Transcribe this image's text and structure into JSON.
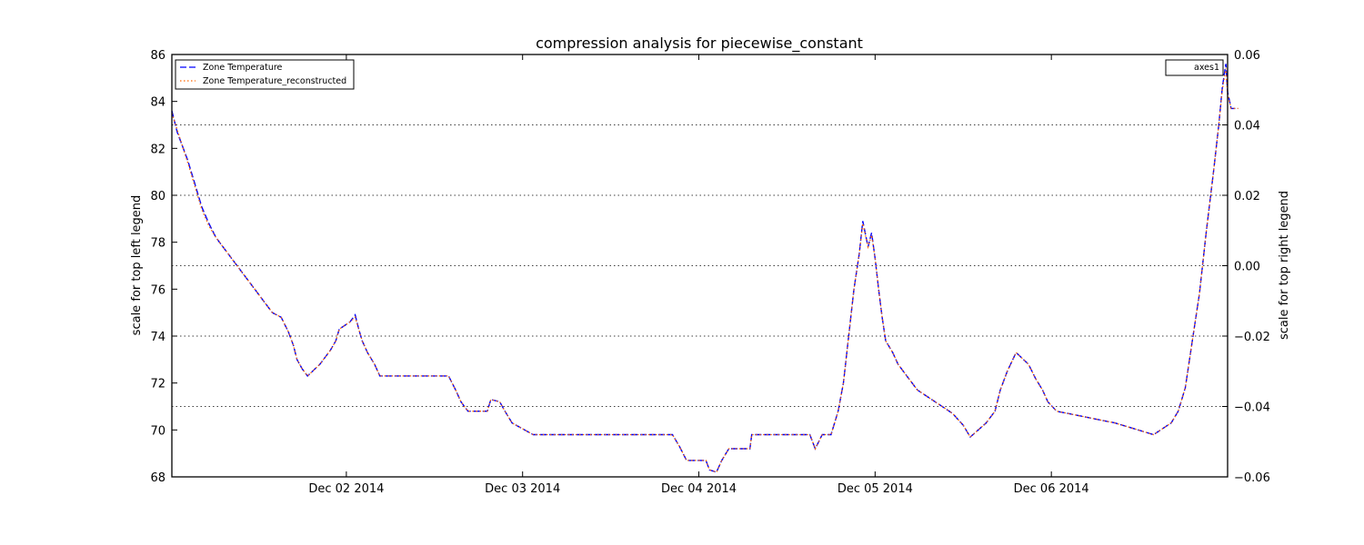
{
  "chart_data": {
    "type": "line",
    "title": "compression analysis for piecewise_constant",
    "ylabel_left": "scale for top left legend",
    "ylabel_right": "scale for top right legend",
    "ylim_left": [
      68,
      86
    ],
    "ylim_right": [
      -0.06,
      0.06
    ],
    "y_ticks_left": [
      "68",
      "70",
      "72",
      "74",
      "76",
      "78",
      "80",
      "82",
      "84",
      "86"
    ],
    "y_ticks_right": [
      "−0.06",
      "−0.04",
      "−0.02",
      "0.00",
      "0.02",
      "0.04",
      "0.06"
    ],
    "x_ticks": [
      "Dec 02 2014",
      "Dec 03 2014",
      "Dec 04 2014",
      "Dec 05 2014",
      "Dec 06 2014"
    ],
    "xlim_days": [
      -0.99,
      5.0
    ],
    "grid": "horizontal dotted lines on right axis ticks",
    "legend_left": {
      "placement": "top-left",
      "entries": [
        "Zone Temperature",
        "Zone Temperature_reconstructed"
      ]
    },
    "legend_right": {
      "placement": "top-right",
      "entries": [
        "axes1"
      ]
    },
    "series": [
      {
        "name": "Zone Temperature",
        "color": "#0000ff",
        "style": "dashed",
        "points": [
          [
            -0.99,
            83.6
          ],
          [
            -0.96,
            82.7
          ],
          [
            -0.9,
            81.5
          ],
          [
            -0.86,
            80.5
          ],
          [
            -0.82,
            79.5
          ],
          [
            -0.78,
            78.8
          ],
          [
            -0.74,
            78.2
          ],
          [
            -0.7,
            77.8
          ],
          [
            -0.66,
            77.4
          ],
          [
            -0.62,
            77.0
          ],
          [
            -0.57,
            76.5
          ],
          [
            -0.52,
            76.0
          ],
          [
            -0.47,
            75.5
          ],
          [
            -0.42,
            75.0
          ],
          [
            -0.37,
            74.8
          ],
          [
            -0.33,
            74.2
          ],
          [
            -0.3,
            73.6
          ],
          [
            -0.28,
            73.0
          ],
          [
            -0.25,
            72.6
          ],
          [
            -0.22,
            72.3
          ],
          [
            -0.15,
            72.8
          ],
          [
            -0.09,
            73.4
          ],
          [
            -0.06,
            73.8
          ],
          [
            -0.04,
            74.3
          ],
          [
            0.02,
            74.6
          ],
          [
            0.05,
            74.9
          ],
          [
            0.07,
            74.3
          ],
          [
            0.09,
            73.8
          ],
          [
            0.12,
            73.3
          ],
          [
            0.16,
            72.8
          ],
          [
            0.19,
            72.3
          ],
          [
            0.58,
            72.3
          ],
          [
            0.62,
            71.7
          ],
          [
            0.65,
            71.2
          ],
          [
            0.69,
            70.8
          ],
          [
            0.8,
            70.8
          ],
          [
            0.82,
            71.3
          ],
          [
            0.87,
            71.2
          ],
          [
            0.9,
            70.8
          ],
          [
            0.94,
            70.3
          ],
          [
            1.06,
            69.8
          ],
          [
            1.85,
            69.8
          ],
          [
            1.89,
            69.3
          ],
          [
            1.93,
            68.7
          ],
          [
            2.04,
            68.7
          ],
          [
            2.06,
            68.3
          ],
          [
            2.1,
            68.2
          ],
          [
            2.13,
            68.7
          ],
          [
            2.17,
            69.2
          ],
          [
            2.29,
            69.2
          ],
          [
            2.3,
            69.8
          ],
          [
            2.63,
            69.8
          ],
          [
            2.66,
            69.2
          ],
          [
            2.7,
            69.8
          ],
          [
            2.75,
            69.8
          ],
          [
            2.79,
            70.8
          ],
          [
            2.82,
            72.0
          ],
          [
            2.85,
            74.0
          ],
          [
            2.88,
            76.0
          ],
          [
            2.91,
            77.5
          ],
          [
            2.93,
            78.9
          ],
          [
            2.96,
            77.8
          ],
          [
            2.98,
            78.4
          ],
          [
            3.0,
            77.3
          ],
          [
            3.02,
            76.0
          ],
          [
            3.04,
            74.8
          ],
          [
            3.06,
            73.8
          ],
          [
            3.1,
            73.3
          ],
          [
            3.13,
            72.8
          ],
          [
            3.18,
            72.3
          ],
          [
            3.24,
            71.7
          ],
          [
            3.34,
            71.2
          ],
          [
            3.44,
            70.7
          ],
          [
            3.5,
            70.2
          ],
          [
            3.54,
            69.7
          ],
          [
            3.63,
            70.3
          ],
          [
            3.68,
            70.8
          ],
          [
            3.71,
            71.7
          ],
          [
            3.75,
            72.5
          ],
          [
            3.8,
            73.3
          ],
          [
            3.87,
            72.8
          ],
          [
            3.91,
            72.2
          ],
          [
            3.95,
            71.7
          ],
          [
            3.98,
            71.2
          ],
          [
            4.03,
            70.8
          ],
          [
            4.36,
            70.3
          ],
          [
            4.58,
            69.8
          ],
          [
            4.68,
            70.3
          ],
          [
            4.72,
            70.8
          ],
          [
            4.76,
            71.8
          ],
          [
            4.8,
            73.8
          ],
          [
            4.84,
            75.8
          ],
          [
            4.88,
            78.5
          ],
          [
            4.92,
            81.0
          ],
          [
            4.95,
            83.0
          ],
          [
            4.97,
            84.6
          ],
          [
            4.99,
            85.6
          ],
          [
            5.0,
            84.4
          ],
          [
            5.02,
            83.7
          ],
          [
            5.06,
            83.7
          ]
        ]
      },
      {
        "name": "Zone Temperature_reconstructed",
        "color": "#ff6600",
        "style": "dotted",
        "points": [
          [
            -0.99,
            83.5
          ],
          [
            -0.96,
            82.8
          ],
          [
            -0.9,
            81.4
          ],
          [
            -0.86,
            80.4
          ],
          [
            -0.82,
            79.4
          ],
          [
            -0.78,
            78.7
          ],
          [
            -0.74,
            78.2
          ],
          [
            -0.7,
            77.8
          ],
          [
            -0.66,
            77.4
          ],
          [
            -0.62,
            77.0
          ],
          [
            -0.57,
            76.5
          ],
          [
            -0.52,
            76.0
          ],
          [
            -0.47,
            75.5
          ],
          [
            -0.42,
            75.0
          ],
          [
            -0.37,
            74.8
          ],
          [
            -0.33,
            74.2
          ],
          [
            -0.3,
            73.6
          ],
          [
            -0.28,
            73.0
          ],
          [
            -0.25,
            72.6
          ],
          [
            -0.22,
            72.3
          ],
          [
            -0.15,
            72.8
          ],
          [
            -0.09,
            73.4
          ],
          [
            -0.06,
            73.8
          ],
          [
            -0.04,
            74.3
          ],
          [
            0.02,
            74.6
          ],
          [
            0.05,
            74.8
          ],
          [
            0.07,
            74.3
          ],
          [
            0.09,
            73.8
          ],
          [
            0.12,
            73.3
          ],
          [
            0.16,
            72.8
          ],
          [
            0.19,
            72.3
          ],
          [
            0.58,
            72.3
          ],
          [
            0.62,
            71.7
          ],
          [
            0.65,
            71.2
          ],
          [
            0.69,
            70.8
          ],
          [
            0.8,
            70.8
          ],
          [
            0.82,
            71.3
          ],
          [
            0.87,
            71.2
          ],
          [
            0.9,
            70.8
          ],
          [
            0.94,
            70.3
          ],
          [
            1.06,
            69.8
          ],
          [
            1.85,
            69.8
          ],
          [
            1.89,
            69.3
          ],
          [
            1.93,
            68.7
          ],
          [
            2.04,
            68.7
          ],
          [
            2.06,
            68.3
          ],
          [
            2.1,
            68.2
          ],
          [
            2.13,
            68.7
          ],
          [
            2.17,
            69.2
          ],
          [
            2.29,
            69.2
          ],
          [
            2.3,
            69.8
          ],
          [
            2.63,
            69.8
          ],
          [
            2.66,
            69.2
          ],
          [
            2.7,
            69.8
          ],
          [
            2.75,
            69.8
          ],
          [
            2.79,
            70.8
          ],
          [
            2.82,
            72.0
          ],
          [
            2.85,
            74.0
          ],
          [
            2.88,
            76.0
          ],
          [
            2.91,
            77.5
          ],
          [
            2.93,
            78.8
          ],
          [
            2.96,
            77.8
          ],
          [
            2.98,
            78.3
          ],
          [
            3.0,
            77.3
          ],
          [
            3.02,
            76.0
          ],
          [
            3.04,
            74.8
          ],
          [
            3.06,
            73.8
          ],
          [
            3.1,
            73.3
          ],
          [
            3.13,
            72.8
          ],
          [
            3.18,
            72.3
          ],
          [
            3.24,
            71.7
          ],
          [
            3.34,
            71.2
          ],
          [
            3.44,
            70.7
          ],
          [
            3.5,
            70.2
          ],
          [
            3.54,
            69.7
          ],
          [
            3.63,
            70.3
          ],
          [
            3.68,
            70.8
          ],
          [
            3.71,
            71.7
          ],
          [
            3.75,
            72.5
          ],
          [
            3.8,
            73.3
          ],
          [
            3.87,
            72.8
          ],
          [
            3.91,
            72.2
          ],
          [
            3.95,
            71.7
          ],
          [
            3.98,
            71.2
          ],
          [
            4.03,
            70.8
          ],
          [
            4.36,
            70.3
          ],
          [
            4.58,
            69.8
          ],
          [
            4.68,
            70.3
          ],
          [
            4.72,
            70.8
          ],
          [
            4.76,
            71.8
          ],
          [
            4.8,
            73.8
          ],
          [
            4.84,
            75.8
          ],
          [
            4.88,
            78.5
          ],
          [
            4.92,
            81.0
          ],
          [
            4.95,
            83.0
          ],
          [
            4.97,
            84.5
          ],
          [
            4.99,
            85.4
          ],
          [
            5.0,
            84.3
          ],
          [
            5.02,
            83.7
          ],
          [
            5.06,
            83.7
          ]
        ]
      }
    ]
  }
}
